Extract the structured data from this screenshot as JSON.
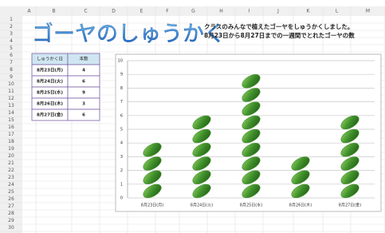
{
  "columns": [
    "A",
    "B",
    "C",
    "D",
    "E",
    "F",
    "G",
    "H",
    "I",
    "J",
    "K",
    "L",
    "M"
  ],
  "rows": [
    1,
    2,
    3,
    4,
    5,
    6,
    7,
    8,
    9,
    10,
    11,
    12,
    13,
    14,
    15,
    16,
    17,
    18,
    19,
    20,
    21,
    22,
    23,
    24,
    25,
    26,
    27,
    28,
    29,
    30
  ],
  "title": "ゴーヤのしゅうかく",
  "description": [
    "クラスのみんなで植えたゴーヤをしゅうかくしました。",
    "8月23日から8月27日までの一週間でとれたゴーヤの数"
  ],
  "table": {
    "header": [
      "しゅうかく日",
      "本数"
    ],
    "rows": [
      [
        "8月23日(月)",
        4
      ],
      [
        "8月24日(火)",
        6
      ],
      [
        "8月25日(水)",
        9
      ],
      [
        "8月26日(木)",
        3
      ],
      [
        "8月27日(金)",
        6
      ]
    ]
  },
  "chart_data": {
    "type": "pictograph",
    "categories": [
      "8月23日(月)",
      "8月24日(火)",
      "8月25日(水)",
      "8月26日(木)",
      "8月27日(金)"
    ],
    "values": [
      4,
      6,
      9,
      3,
      6
    ],
    "color": "#3f8f2a",
    "ylim": [
      0,
      10
    ],
    "yticks": [
      0,
      1,
      2,
      3,
      4,
      5,
      6,
      7,
      8,
      9,
      10
    ],
    "grid": true
  }
}
